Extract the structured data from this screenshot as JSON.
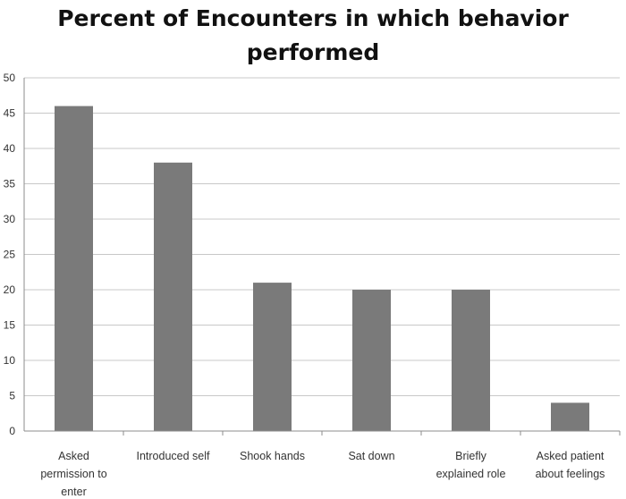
{
  "chart_data": {
    "type": "bar",
    "title_lines": [
      "Percent of Encounters in which behavior",
      "performed"
    ],
    "categories": [
      [
        "Asked",
        "permission to",
        "enter"
      ],
      [
        "Introduced self"
      ],
      [
        "Shook hands"
      ],
      [
        "Sat down"
      ],
      [
        "Briefly",
        "explained role"
      ],
      [
        "Asked patient",
        "about feelings"
      ]
    ],
    "values": [
      46,
      38,
      21,
      20,
      20,
      4
    ],
    "ylim": [
      0,
      50
    ],
    "yticks": [
      0,
      5,
      10,
      15,
      20,
      25,
      30,
      35,
      40,
      45,
      50
    ],
    "grid": true,
    "legend": "none",
    "bar_color": "#7a7a7a",
    "grid_color": "#c8c8c8",
    "axis_color": "#8c8c8c"
  }
}
